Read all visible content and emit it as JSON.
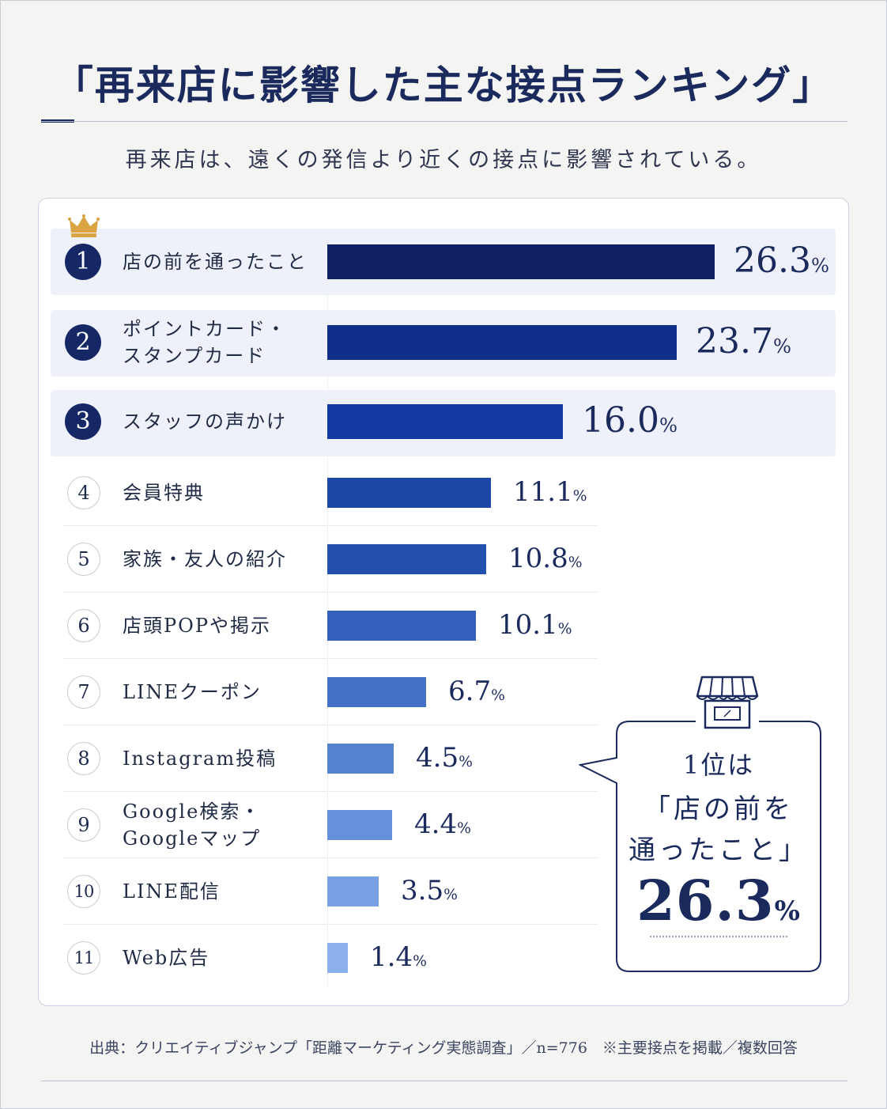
{
  "title": "「再来店に影響した主な接点ランキング」",
  "subtitle": "再来店は、遠くの発信より近くの接点に影響されている。",
  "source": "出典：クリエイティブジャンプ「距離マーケティング実態調査」／n=776　※主要接点を掲載／複数回答",
  "pct_symbol": "%",
  "callout": {
    "line1": "1位は",
    "line2": "「店の前を",
    "line3": "通ったこと」",
    "value": "26.3"
  },
  "colors": {
    "navy": "#162766",
    "highlight_bg": "#eef1f9",
    "crown": "#d9a441",
    "bar_gradient": [
      "#0e1f63",
      "#0f2f8a",
      "#1239a0",
      "#1d47a6",
      "#2450af",
      "#3460bb",
      "#4470c6",
      "#5583d1",
      "#6690da",
      "#78a0e2",
      "#8cb1ea"
    ]
  },
  "chart_data": {
    "type": "bar",
    "orientation": "horizontal",
    "title": "「再来店に影響した主な接点ランキング」",
    "subtitle": "再来店は、遠くの発信より近くの接点に影響されている。",
    "unit": "%",
    "items": [
      {
        "rank": "1",
        "label": "店の前を通ったこと",
        "label_lines": [
          "店の前を通ったこと"
        ],
        "value": 26.3,
        "value_text": "26.3"
      },
      {
        "rank": "2",
        "label": "ポイントカード・スタンプカード",
        "label_lines": [
          "ポイントカード・",
          "スタンプカード"
        ],
        "value": 23.7,
        "value_text": "23.7"
      },
      {
        "rank": "3",
        "label": "スタッフの声かけ",
        "label_lines": [
          "スタッフの声かけ"
        ],
        "value": 16.0,
        "value_text": "16.0"
      },
      {
        "rank": "4",
        "label": "会員特典",
        "label_lines": [
          "会員特典"
        ],
        "value": 11.1,
        "value_text": "11.1"
      },
      {
        "rank": "5",
        "label": "家族・友人の紹介",
        "label_lines": [
          "家族・友人の紹介"
        ],
        "value": 10.8,
        "value_text": "10.8"
      },
      {
        "rank": "6",
        "label": "店頭POPや掲示",
        "label_lines": [
          "店頭POPや掲示"
        ],
        "value": 10.1,
        "value_text": "10.1"
      },
      {
        "rank": "7",
        "label": "LINEクーポン",
        "label_lines": [
          "LINEクーポン"
        ],
        "value": 6.7,
        "value_text": "6.7"
      },
      {
        "rank": "8",
        "label": "Instagram投稿",
        "label_lines": [
          "Instagram投稿"
        ],
        "value": 4.5,
        "value_text": "4.5"
      },
      {
        "rank": "9",
        "label": "Google検索・Googleマップ",
        "label_lines": [
          "Google検索・",
          "Googleマップ"
        ],
        "value": 4.4,
        "value_text": "4.4"
      },
      {
        "rank": "10",
        "label": "LINE配信",
        "label_lines": [
          "LINE配信"
        ],
        "value": 3.5,
        "value_text": "3.5"
      },
      {
        "rank": "11",
        "label": "Web広告",
        "label_lines": [
          "Web広告"
        ],
        "value": 1.4,
        "value_text": "1.4"
      }
    ],
    "grid": false,
    "legend": "none"
  }
}
